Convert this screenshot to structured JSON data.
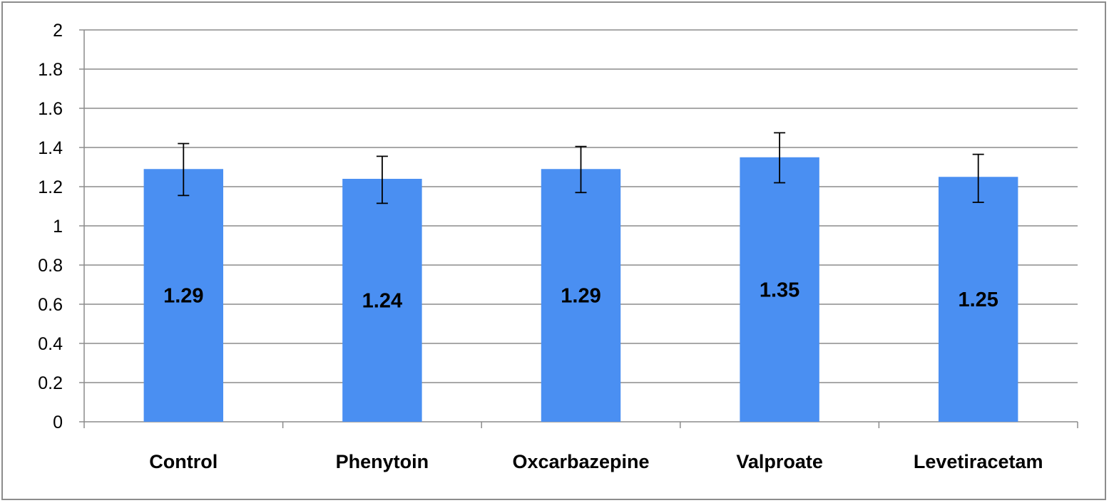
{
  "chart_data": {
    "type": "bar",
    "title": "",
    "xlabel": "",
    "ylabel": "",
    "categories": [
      "Control",
      "Phenytoin",
      "Oxcarbazepine",
      "Valproate",
      "Levetiracetam"
    ],
    "values": [
      1.29,
      1.24,
      1.29,
      1.35,
      1.25
    ],
    "value_labels": [
      "1.29",
      "1.24",
      "1.29",
      "1.35",
      "1.25"
    ],
    "error_upper": [
      1.42,
      1.355,
      1.405,
      1.475,
      1.365
    ],
    "error_lower": [
      1.155,
      1.115,
      1.17,
      1.22,
      1.12
    ],
    "ylim": [
      0,
      2
    ],
    "y_ticks": [
      "0",
      "0.2",
      "0.4",
      "0.6",
      "0.8",
      "1",
      "1.2",
      "1.4",
      "1.6",
      "1.8",
      "2"
    ],
    "grid": true,
    "legend": "none",
    "colors": {
      "bar": "#4a8ff2",
      "grid": "#8c8c8c",
      "axis": "#8c8c8c",
      "error_bar": "#000000",
      "frame": "#8c8c8c"
    }
  }
}
